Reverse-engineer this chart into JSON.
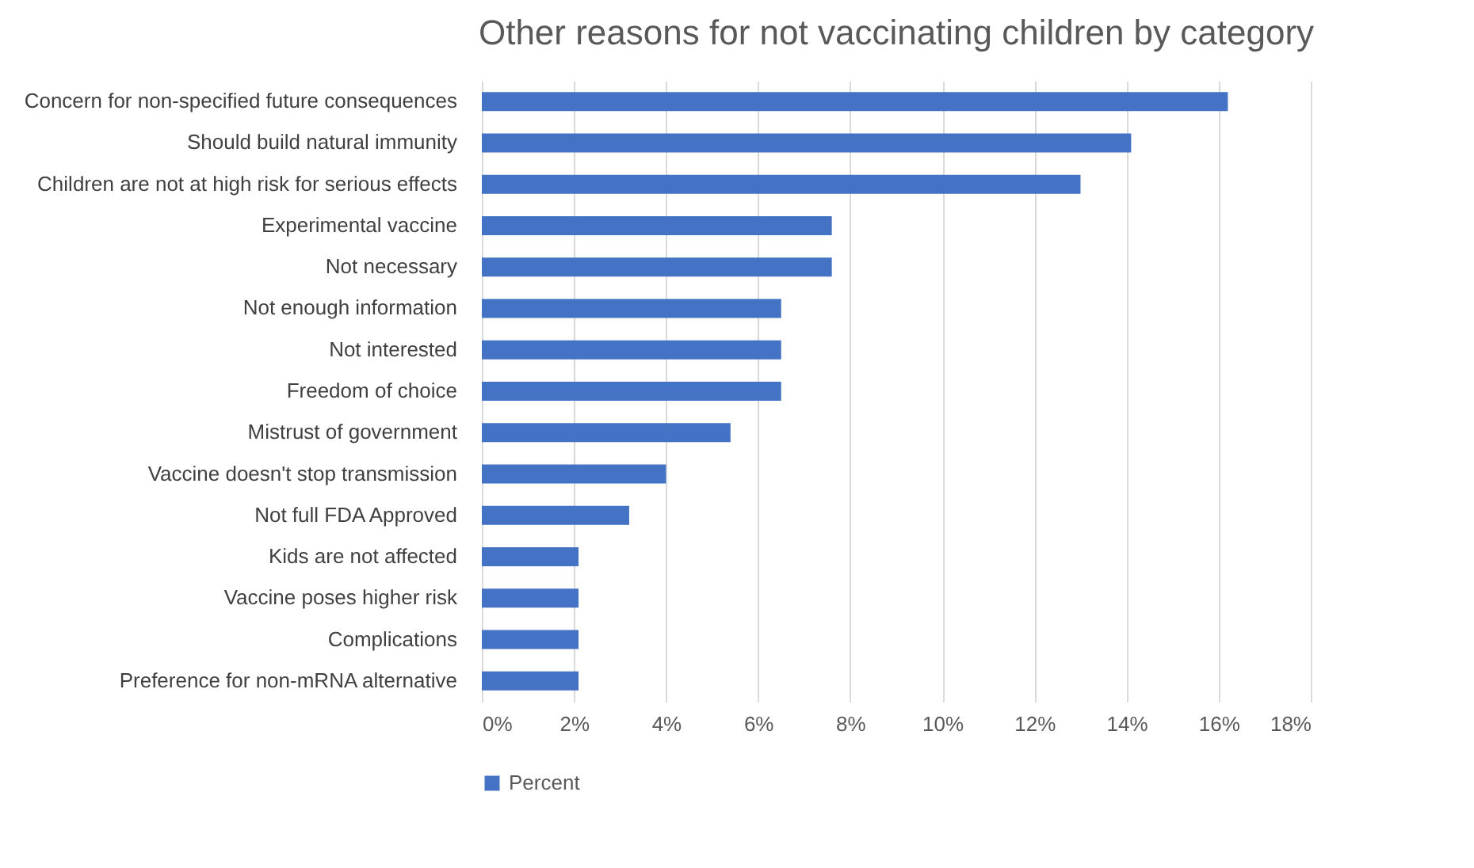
{
  "chart_data": {
    "type": "bar",
    "orientation": "horizontal",
    "title": "Other reasons for not vaccinating children by category",
    "categories": [
      "Concern for non-specified future consequences",
      "Should build natural immunity",
      "Children are not at high risk for serious effects",
      "Experimental vaccine",
      "Not necessary ",
      "Not enough information",
      "Not interested",
      "Freedom of choice ",
      "Mistrust of government",
      "Vaccine doesn't stop transmission ",
      "Not full FDA Approved ",
      "Kids are not affected",
      "Vaccine poses higher risk",
      "Complications",
      "Preference for non-mRNA alternative "
    ],
    "series": [
      {
        "name": "Percent",
        "color": "#4472c4",
        "values": [
          16.2,
          14.1,
          13.0,
          7.6,
          7.6,
          6.5,
          6.5,
          6.5,
          5.4,
          4.0,
          3.2,
          2.1,
          2.1,
          2.1,
          2.1
        ]
      }
    ],
    "xlim": [
      0,
      18
    ],
    "xticks": [
      {
        "value": 0,
        "label": "0%"
      },
      {
        "value": 2,
        "label": "2%"
      },
      {
        "value": 4,
        "label": "4%"
      },
      {
        "value": 6,
        "label": "6%"
      },
      {
        "value": 8,
        "label": "8%"
      },
      {
        "value": 10,
        "label": "10%"
      },
      {
        "value": 12,
        "label": "12%"
      },
      {
        "value": 14,
        "label": "14%"
      },
      {
        "value": 16,
        "label": "16%"
      },
      {
        "value": 18,
        "label": "18%"
      }
    ],
    "grid": "x",
    "legend": "bottom"
  }
}
